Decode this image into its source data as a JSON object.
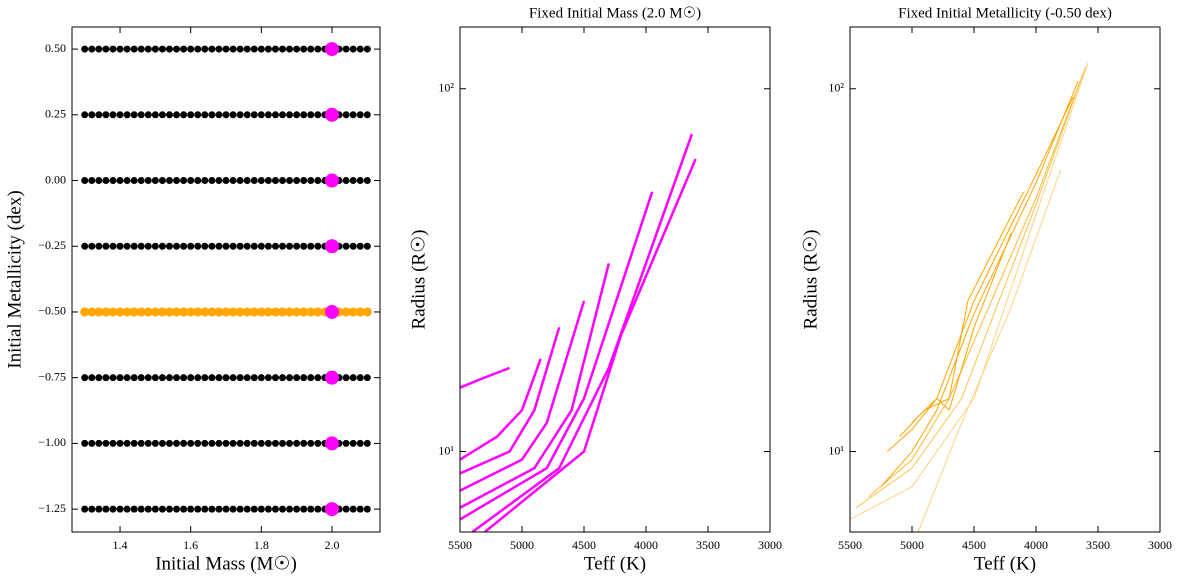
{
  "chart_data": [
    {
      "type": "scatter",
      "xlabel": "Initial Mass (M☉)",
      "ylabel": "Initial Metallicity (dex)",
      "xlim": [
        1.264,
        2.136
      ],
      "ylim": [
        -1.337,
        0.584
      ],
      "xticks": [
        {
          "value": 1.4,
          "label": "1.4"
        },
        {
          "value": 1.6,
          "label": "1.6"
        },
        {
          "value": 1.8,
          "label": "1.8"
        },
        {
          "value": 2.0,
          "label": "2.0"
        }
      ],
      "yticks": [
        {
          "value": 0.5,
          "label": "0.50"
        },
        {
          "value": 0.25,
          "label": "0.25"
        },
        {
          "value": 0,
          "label": "0.00"
        },
        {
          "value": -0.25,
          "label": "−0.25"
        },
        {
          "value": -0.5,
          "label": "−0.50"
        },
        {
          "value": -0.75,
          "label": "−0.75"
        },
        {
          "value": -1.0,
          "label": "−1.00"
        },
        {
          "value": -1.25,
          "label": "−1.25"
        }
      ],
      "x": [
        1.3,
        1.32,
        1.34,
        1.36,
        1.38,
        1.4,
        1.42,
        1.44,
        1.46,
        1.48,
        1.5,
        1.52,
        1.54,
        1.56,
        1.58,
        1.6,
        1.62,
        1.64,
        1.66,
        1.68,
        1.7,
        1.72,
        1.74,
        1.76,
        1.78,
        1.8,
        1.82,
        1.84,
        1.86,
        1.88,
        1.9,
        1.92,
        1.94,
        1.96,
        1.98,
        2.0,
        2.02,
        2.04,
        2.06,
        2.08,
        2.1
      ],
      "series": [
        {
          "color": "#000000",
          "marker_size": 3.5,
          "values": [
            0.5,
            0.5,
            0.5,
            0.5,
            0.5,
            0.5,
            0.5,
            0.5,
            0.5,
            0.5,
            0.5,
            0.5,
            0.5,
            0.5,
            0.5,
            0.5,
            0.5,
            0.5,
            0.5,
            0.5,
            0.5,
            0.5,
            0.5,
            0.5,
            0.5,
            0.5,
            0.5,
            0.5,
            0.5,
            0.5,
            0.5,
            0.5,
            0.5,
            0.5,
            0.5,
            0.5,
            0.5,
            0.5,
            0.5,
            0.5,
            0.5
          ]
        },
        {
          "color": "#000000",
          "marker_size": 3.5,
          "values": [
            0.25,
            0.25,
            0.25,
            0.25,
            0.25,
            0.25,
            0.25,
            0.25,
            0.25,
            0.25,
            0.25,
            0.25,
            0.25,
            0.25,
            0.25,
            0.25,
            0.25,
            0.25,
            0.25,
            0.25,
            0.25,
            0.25,
            0.25,
            0.25,
            0.25,
            0.25,
            0.25,
            0.25,
            0.25,
            0.25,
            0.25,
            0.25,
            0.25,
            0.25,
            0.25,
            0.25,
            0.25,
            0.25,
            0.25,
            0.25,
            0.25
          ]
        },
        {
          "color": "#000000",
          "marker_size": 3.5,
          "values": [
            0,
            0,
            0,
            0,
            0,
            0,
            0,
            0,
            0,
            0,
            0,
            0,
            0,
            0,
            0,
            0,
            0,
            0,
            0,
            0,
            0,
            0,
            0,
            0,
            0,
            0,
            0,
            0,
            0,
            0,
            0,
            0,
            0,
            0,
            0,
            0,
            0,
            0,
            0,
            0,
            0
          ]
        },
        {
          "color": "#000000",
          "marker_size": 3.5,
          "values": [
            -0.25,
            -0.25,
            -0.25,
            -0.25,
            -0.25,
            -0.25,
            -0.25,
            -0.25,
            -0.25,
            -0.25,
            -0.25,
            -0.25,
            -0.25,
            -0.25,
            -0.25,
            -0.25,
            -0.25,
            -0.25,
            -0.25,
            -0.25,
            -0.25,
            -0.25,
            -0.25,
            -0.25,
            -0.25,
            -0.25,
            -0.25,
            -0.25,
            -0.25,
            -0.25,
            -0.25,
            -0.25,
            -0.25,
            -0.25,
            -0.25,
            -0.25,
            -0.25,
            -0.25,
            -0.25,
            -0.25,
            -0.25
          ]
        },
        {
          "color": "#ffa500",
          "marker_size": 4.5,
          "values": [
            -0.5,
            -0.5,
            -0.5,
            -0.5,
            -0.5,
            -0.5,
            -0.5,
            -0.5,
            -0.5,
            -0.5,
            -0.5,
            -0.5,
            -0.5,
            -0.5,
            -0.5,
            -0.5,
            -0.5,
            -0.5,
            -0.5,
            -0.5,
            -0.5,
            -0.5,
            -0.5,
            -0.5,
            -0.5,
            -0.5,
            -0.5,
            -0.5,
            -0.5,
            -0.5,
            -0.5,
            -0.5,
            -0.5,
            -0.5,
            -0.5,
            -0.5,
            -0.5,
            -0.5,
            -0.5,
            -0.5,
            -0.5
          ]
        },
        {
          "color": "#000000",
          "marker_size": 3.5,
          "values": [
            -0.75,
            -0.75,
            -0.75,
            -0.75,
            -0.75,
            -0.75,
            -0.75,
            -0.75,
            -0.75,
            -0.75,
            -0.75,
            -0.75,
            -0.75,
            -0.75,
            -0.75,
            -0.75,
            -0.75,
            -0.75,
            -0.75,
            -0.75,
            -0.75,
            -0.75,
            -0.75,
            -0.75,
            -0.75,
            -0.75,
            -0.75,
            -0.75,
            -0.75,
            -0.75,
            -0.75,
            -0.75,
            -0.75,
            -0.75,
            -0.75,
            -0.75,
            -0.75,
            -0.75,
            -0.75,
            -0.75,
            -0.75
          ]
        },
        {
          "color": "#000000",
          "marker_size": 3.5,
          "values": [
            -1,
            -1,
            -1,
            -1,
            -1,
            -1,
            -1,
            -1,
            -1,
            -1,
            -1,
            -1,
            -1,
            -1,
            -1,
            -1,
            -1,
            -1,
            -1,
            -1,
            -1,
            -1,
            -1,
            -1,
            -1,
            -1,
            -1,
            -1,
            -1,
            -1,
            -1,
            -1,
            -1,
            -1,
            -1,
            -1,
            -1,
            -1,
            -1,
            -1,
            -1
          ]
        },
        {
          "color": "#000000",
          "marker_size": 3.5,
          "values": [
            -1.25,
            -1.25,
            -1.25,
            -1.25,
            -1.25,
            -1.25,
            -1.25,
            -1.25,
            -1.25,
            -1.25,
            -1.25,
            -1.25,
            -1.25,
            -1.25,
            -1.25,
            -1.25,
            -1.25,
            -1.25,
            -1.25,
            -1.25,
            -1.25,
            -1.25,
            -1.25,
            -1.25,
            -1.25,
            -1.25,
            -1.25,
            -1.25,
            -1.25,
            -1.25,
            -1.25,
            -1.25,
            -1.25,
            -1.25,
            -1.25,
            -1.25,
            -1.25,
            -1.25,
            -1.25,
            -1.25,
            -1.25
          ]
        },
        {
          "color": "#ff00ff",
          "marker_size": 7,
          "x": [
            2.0,
            2.0,
            2.0,
            2.0,
            2.0,
            2.0,
            2.0,
            2.0
          ],
          "values": [
            0.5,
            0.25,
            0,
            -0.25,
            -0.5,
            -0.75,
            -1.0,
            -1.25
          ]
        }
      ]
    },
    {
      "type": "line",
      "title": "Fixed Initial Mass (2.0 M☉)",
      "xlabel": "Teff (K)",
      "ylabel": "Radius (R☉)",
      "xlim": [
        5500,
        3000
      ],
      "ylim": [
        6,
        148
      ],
      "yscale": "log",
      "linewidth": 2.5,
      "xticks": [
        5500,
        5000,
        4500,
        4000,
        3500,
        3000
      ],
      "yticks": [
        {
          "value": 10,
          "label": "10¹"
        },
        {
          "value": 100,
          "label": "10²"
        }
      ],
      "series": [
        {
          "color": "#ff00ff",
          "x": [
            5500,
            5300,
            5100
          ],
          "values": [
            15,
            16,
            17
          ]
        },
        {
          "color": "#ff00ff",
          "x": [
            5500,
            5200,
            5000,
            4850
          ],
          "values": [
            9.5,
            11,
            13,
            18
          ]
        },
        {
          "color": "#ff00ff",
          "x": [
            5500,
            5100,
            4900,
            4700
          ],
          "values": [
            8.7,
            10,
            13,
            22
          ]
        },
        {
          "color": "#ff00ff",
          "x": [
            5500,
            5000,
            4800,
            4500
          ],
          "values": [
            7.8,
            9.5,
            12,
            26
          ]
        },
        {
          "color": "#ff00ff",
          "x": [
            5500,
            4900,
            4600,
            4300
          ],
          "values": [
            7,
            9,
            13,
            33
          ]
        },
        {
          "color": "#ff00ff",
          "x": [
            5500,
            4800,
            4500,
            3950
          ],
          "values": [
            6.5,
            9,
            14,
            52
          ]
        },
        {
          "color": "#ff00ff",
          "x": [
            5400,
            4700,
            4300,
            3630
          ],
          "values": [
            6,
            9,
            17,
            75
          ]
        },
        {
          "color": "#ff00ff",
          "x": [
            5300,
            4500,
            4200,
            3600
          ],
          "values": [
            6,
            10,
            21,
            64
          ]
        }
      ]
    },
    {
      "type": "line",
      "title": "Fixed Initial Metallicity (-0.50 dex)",
      "xlabel": "Teff (K)",
      "ylabel": "Radius (R☉)",
      "xlim": [
        5500,
        3000
      ],
      "ylim": [
        6,
        148
      ],
      "yscale": "log",
      "linewidth": 1,
      "xticks": [
        5500,
        5000,
        4500,
        4000,
        3500,
        3000
      ],
      "yticks": [
        {
          "value": 10,
          "label": "10¹"
        },
        {
          "value": 100,
          "label": "10²"
        }
      ],
      "series": [
        {
          "color": "#ffd27f",
          "x": [
            5500,
            5000,
            4500,
            4000,
            3580
          ],
          "values": [
            6.5,
            8,
            14,
            45,
            118
          ]
        },
        {
          "color": "#ffc04d",
          "x": [
            5450,
            5000,
            4600,
            4000,
            3600
          ],
          "values": [
            7,
            9,
            14,
            48,
            115
          ]
        },
        {
          "color": "#ffb733",
          "x": [
            5350,
            5000,
            4700,
            4000,
            3620
          ],
          "values": [
            7.5,
            9.5,
            14,
            50,
            110
          ]
        },
        {
          "color": "#ffa500",
          "x": [
            5250,
            5000,
            4800,
            4500,
            4000,
            3660
          ],
          "values": [
            8,
            10,
            13,
            24,
            55,
            105
          ]
        },
        {
          "color": "#ffa500",
          "x": [
            5200,
            5000,
            4800,
            4500,
            4000,
            3700
          ],
          "values": [
            10,
            11.5,
            14,
            26,
            58,
            95
          ]
        },
        {
          "color": "#ffa500",
          "x": [
            5100,
            4900,
            4700,
            4550,
            4100
          ],
          "values": [
            11,
            13,
            14,
            26,
            52
          ]
        },
        {
          "color": "#ffa500",
          "x": [
            5000,
            4800,
            4700,
            4500,
            4200
          ],
          "values": [
            12,
            14,
            13,
            22,
            40
          ]
        },
        {
          "color": "#ffd27f",
          "x": [
            4950,
            4600,
            4200,
            3800
          ],
          "values": [
            6,
            12,
            25,
            60
          ]
        }
      ]
    }
  ]
}
